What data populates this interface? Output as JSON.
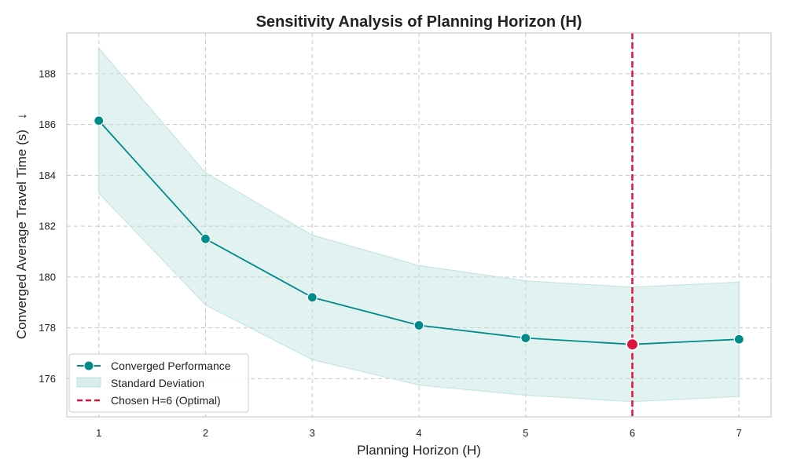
{
  "colors": {
    "series": "#008b8b",
    "band": "#bfe3e0",
    "chosen": "#dc143c",
    "grid": "#c8c8c8",
    "frame": "#cccccc"
  },
  "chart_data": {
    "type": "line",
    "title": "Sensitivity Analysis of Planning Horizon (H)",
    "xlabel": "Planning Horizon (H)",
    "ylabel": "Converged Average Travel Time (s)",
    "ylabel_arrow": "↓",
    "x": [
      1,
      2,
      3,
      4,
      5,
      6,
      7
    ],
    "x_ticks": [
      "1",
      "2",
      "3",
      "4",
      "5",
      "6",
      "7"
    ],
    "y_ticks": [
      "176",
      "178",
      "180",
      "182",
      "184",
      "186",
      "188"
    ],
    "xlim": [
      0.7,
      7.3
    ],
    "ylim": [
      174.5,
      189.6
    ],
    "grid": true,
    "legend_position": "lower-left",
    "series": [
      {
        "name": "Converged Performance",
        "values": [
          186.15,
          181.5,
          179.2,
          178.1,
          177.6,
          177.35,
          177.55
        ]
      }
    ],
    "band": {
      "name": "Standard Deviation",
      "upper": [
        189.0,
        184.1,
        181.65,
        180.45,
        179.85,
        179.6,
        179.8
      ],
      "lower": [
        183.3,
        178.9,
        176.75,
        175.75,
        175.35,
        175.1,
        175.3
      ]
    },
    "chosen": {
      "name": "Chosen H=6 (Optimal)",
      "x": 6,
      "y": 177.35
    }
  }
}
